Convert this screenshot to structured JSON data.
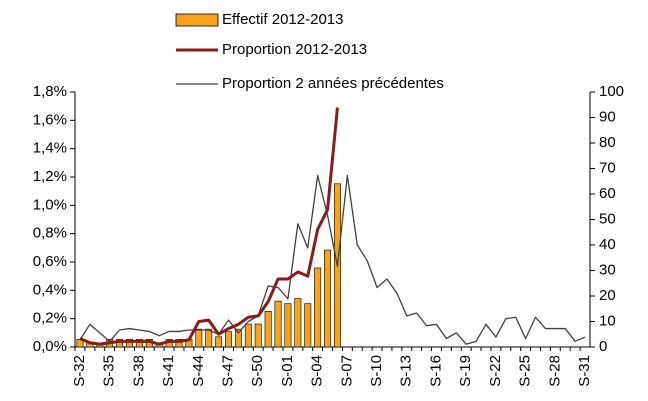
{
  "chart_data": {
    "type": "bar",
    "categories": [
      "S-32",
      null,
      null,
      "S-35",
      null,
      null,
      "S-38",
      null,
      null,
      "S-41",
      null,
      null,
      "S-44",
      null,
      null,
      "S-47",
      null,
      null,
      "S-50",
      null,
      null,
      "S-01",
      null,
      null,
      "S-04",
      null,
      null,
      "S-07",
      null,
      null,
      "S-10",
      null,
      null,
      "S-13",
      null,
      null,
      "S-16",
      null,
      null,
      "S-19",
      null,
      null,
      "S-22",
      null,
      null,
      "S-25",
      null,
      null,
      "S-28",
      null,
      null,
      "S-31"
    ],
    "series": [
      {
        "name": "Effectif 2012-2013",
        "type": "bar",
        "axis": "y2",
        "color": "#f7a21b",
        "values": [
          3,
          2,
          1,
          3,
          3,
          3,
          3,
          3,
          1,
          3,
          3,
          3,
          7,
          7,
          4,
          6,
          7,
          9,
          9,
          14,
          18,
          17,
          19,
          17,
          31,
          38,
          64,
          null,
          null,
          null,
          null,
          null,
          null,
          null,
          null,
          null,
          null,
          null,
          null,
          null,
          null,
          null,
          null,
          null,
          null,
          null,
          null,
          null,
          null,
          null,
          null,
          null
        ]
      },
      {
        "name": "Proportion 2012-2013",
        "type": "line",
        "color": "#8b1a1a",
        "values": [
          0.06,
          0.03,
          0.02,
          0.03,
          0.04,
          0.04,
          0.04,
          0.04,
          0.02,
          0.04,
          0.04,
          0.05,
          0.18,
          0.19,
          0.09,
          0.13,
          0.16,
          0.21,
          0.22,
          0.32,
          0.48,
          0.48,
          0.53,
          0.5,
          0.83,
          0.97,
          1.69,
          null,
          null,
          null,
          null,
          null,
          null,
          null,
          null,
          null,
          null,
          null,
          null,
          null,
          null,
          null,
          null,
          null,
          null,
          null,
          null,
          null,
          null,
          null,
          null,
          null
        ]
      },
      {
        "name": "Proportion 2 années précédentes",
        "type": "line",
        "color": "#404040",
        "values": [
          0.05,
          0.16,
          0.1,
          0.04,
          0.12,
          0.13,
          0.12,
          0.11,
          0.08,
          0.11,
          0.11,
          0.12,
          0.12,
          0.12,
          0.09,
          0.19,
          0.1,
          0.18,
          0.22,
          0.43,
          0.42,
          0.34,
          0.87,
          0.7,
          1.21,
          0.93,
          0.57,
          1.21,
          0.72,
          0.61,
          0.42,
          0.48,
          0.38,
          0.22,
          0.24,
          0.15,
          0.16,
          0.06,
          0.1,
          0.02,
          0.04,
          0.16,
          0.07,
          0.2,
          0.21,
          0.06,
          0.21,
          0.13,
          0.13,
          0.13,
          0.04,
          0.07
        ]
      }
    ],
    "ylim": [
      0,
      1.8
    ],
    "yticks": [
      {
        "value": 0,
        "label": "0,0%"
      },
      {
        "value": 0.2,
        "label": "0,2%"
      },
      {
        "value": 0.4,
        "label": "0,4%"
      },
      {
        "value": 0.6,
        "label": "0,6%"
      },
      {
        "value": 0.8,
        "label": "0,8%"
      },
      {
        "value": 1.0,
        "label": "1,0%"
      },
      {
        "value": 1.2,
        "label": "1,2%"
      },
      {
        "value": 1.4,
        "label": "1,4%"
      },
      {
        "value": 1.6,
        "label": "1,6%"
      },
      {
        "value": 1.8,
        "label": "1,8%"
      }
    ],
    "y2lim": [
      0,
      100
    ],
    "y2ticks": [
      0,
      10,
      20,
      30,
      40,
      50,
      60,
      70,
      80,
      90,
      100
    ],
    "grid": false
  }
}
